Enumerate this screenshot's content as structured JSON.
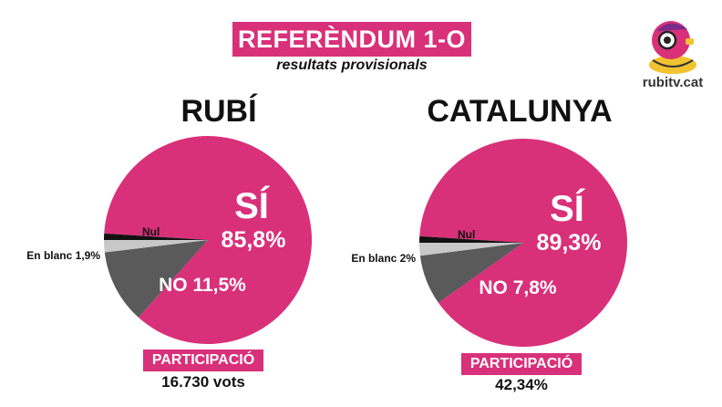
{
  "header": {
    "title": "REFERÈNDUM 1-O",
    "subtitle": "resultats provisionals"
  },
  "logo": {
    "text": "rubitv.cat",
    "name": "rubitv-logo"
  },
  "colors": {
    "accent": "#d9307a",
    "si": "#d9307a",
    "no": "#5a5a5a",
    "blanc": "#c8c8c8",
    "nul": "#111111"
  },
  "chart_data": [
    {
      "type": "pie",
      "title": "RUBÍ",
      "slices": [
        {
          "key": "si",
          "label": "SÍ",
          "value": 85.8,
          "value_text": "85,8%"
        },
        {
          "key": "no",
          "label": "NO",
          "value": 11.5,
          "value_text": "11,5%"
        },
        {
          "key": "blanc",
          "label": "En blanc",
          "value": 1.9,
          "value_text": "1,9%"
        },
        {
          "key": "nul",
          "label": "Nul",
          "value": 1,
          "value_text": "1%"
        }
      ],
      "participation_label": "PARTICIPACIÓ",
      "participation_value": "16.730 vots"
    },
    {
      "type": "pie",
      "title": "CATALUNYA",
      "slices": [
        {
          "key": "si",
          "label": "SÍ",
          "value": 89.3,
          "value_text": "89,3%"
        },
        {
          "key": "no",
          "label": "NO",
          "value": 7.8,
          "value_text": "7,8%"
        },
        {
          "key": "blanc",
          "label": "En blanc",
          "value": 2,
          "value_text": "2%"
        },
        {
          "key": "nul",
          "label": "Nul",
          "value": 1,
          "value_text": "1%"
        }
      ],
      "participation_label": "PARTICIPACIÓ",
      "participation_value": "42,34%"
    }
  ]
}
